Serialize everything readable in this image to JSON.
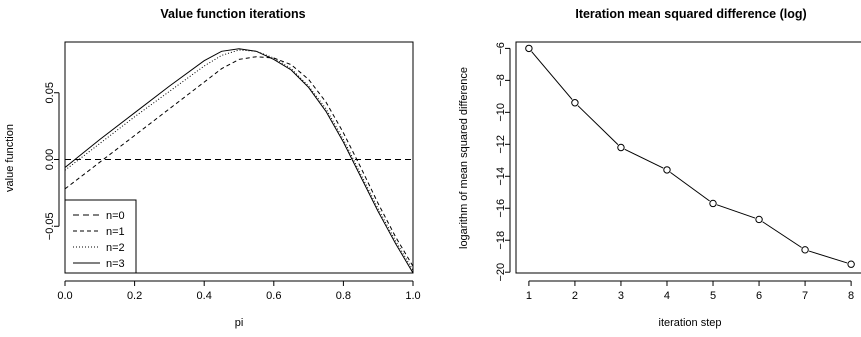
{
  "chart_data": [
    {
      "type": "line",
      "title": "Value function iterations",
      "xlabel": "pi",
      "ylabel": "value function",
      "xlim": [
        0.0,
        1.0
      ],
      "ylim": [
        -0.085,
        0.088
      ],
      "x_ticks": [
        0.0,
        0.2,
        0.4,
        0.6,
        0.8,
        1.0
      ],
      "x_tick_labels": [
        "0.0",
        "0.2",
        "0.4",
        "0.6",
        "0.8",
        "1.0"
      ],
      "y_ticks": [
        -0.05,
        0.0,
        0.05
      ],
      "y_tick_labels": [
        "-0.05",
        "0.00",
        "0.05"
      ],
      "legend_position": "bottom-left",
      "series": [
        {
          "name": "n=0",
          "style": "dashed-long",
          "x": [
            0.0,
            1.0
          ],
          "y": [
            0.0,
            0.0
          ]
        },
        {
          "name": "n=1",
          "style": "dashed",
          "x": [
            0.0,
            0.1,
            0.2,
            0.3,
            0.4,
            0.45,
            0.5,
            0.55,
            0.6,
            0.65,
            0.7,
            0.75,
            0.8,
            0.85,
            0.9,
            0.95,
            1.0
          ],
          "y": [
            -0.022,
            -0.002,
            0.018,
            0.038,
            0.058,
            0.068,
            0.075,
            0.077,
            0.076,
            0.071,
            0.06,
            0.043,
            0.02,
            -0.006,
            -0.033,
            -0.058,
            -0.08
          ]
        },
        {
          "name": "n=2",
          "style": "dotted",
          "x": [
            0.0,
            0.1,
            0.2,
            0.3,
            0.4,
            0.45,
            0.5,
            0.55,
            0.6,
            0.65,
            0.7,
            0.75,
            0.8,
            0.85,
            0.9,
            0.95,
            1.0
          ],
          "y": [
            -0.008,
            0.012,
            0.032,
            0.051,
            0.07,
            0.078,
            0.082,
            0.081,
            0.076,
            0.068,
            0.055,
            0.038,
            0.015,
            -0.011,
            -0.037,
            -0.061,
            -0.083
          ]
        },
        {
          "name": "n=3",
          "style": "solid",
          "x": [
            0.0,
            0.1,
            0.2,
            0.3,
            0.4,
            0.45,
            0.5,
            0.55,
            0.6,
            0.65,
            0.7,
            0.75,
            0.8,
            0.85,
            0.9,
            0.95,
            1.0
          ],
          "y": [
            -0.006,
            0.015,
            0.035,
            0.055,
            0.074,
            0.081,
            0.083,
            0.081,
            0.075,
            0.067,
            0.054,
            0.036,
            0.013,
            -0.013,
            -0.039,
            -0.063,
            -0.085
          ]
        }
      ]
    },
    {
      "type": "line",
      "title": "Iteration mean squared difference (log)",
      "xlabel": "iteration step",
      "ylabel": "logarithm of mean squared difference",
      "xlim": [
        0.72,
        8.28
      ],
      "ylim": [
        -20.05,
        -5.6
      ],
      "x_ticks": [
        1,
        2,
        3,
        4,
        5,
        6,
        7,
        8
      ],
      "x_tick_labels": [
        "1",
        "2",
        "3",
        "4",
        "5",
        "6",
        "7",
        "8"
      ],
      "y_ticks": [
        -6,
        -8,
        -10,
        -12,
        -14,
        -16,
        -18,
        -20
      ],
      "y_tick_labels": [
        "-6",
        "-8",
        "-10",
        "-12",
        "-14",
        "-16",
        "-18",
        "-20"
      ],
      "markers": "open-circle",
      "series": [
        {
          "x": [
            1,
            2,
            3,
            4,
            5,
            6,
            7,
            8
          ],
          "y": [
            -6.0,
            -9.4,
            -12.2,
            -13.6,
            -15.7,
            -16.7,
            -18.6,
            -19.5
          ]
        }
      ]
    }
  ]
}
